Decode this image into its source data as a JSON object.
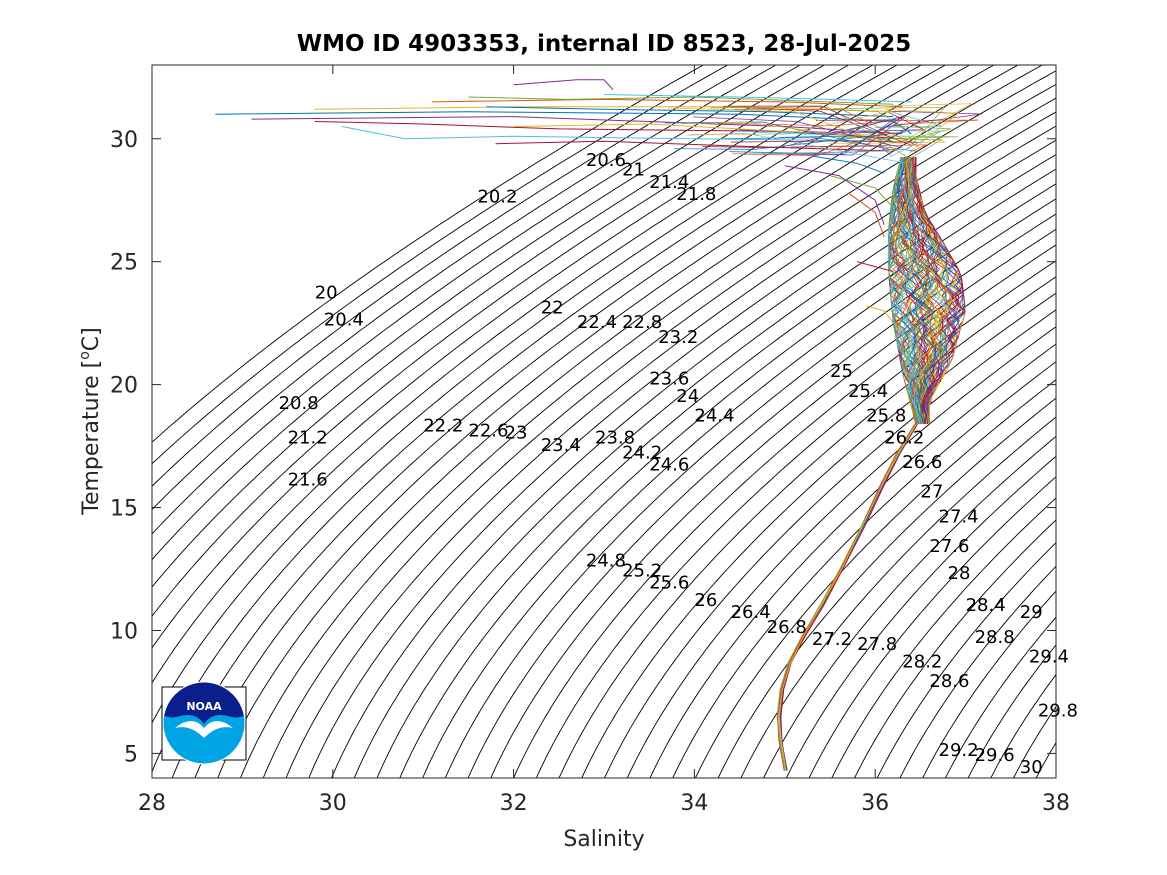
{
  "chart_data": {
    "type": "line",
    "title": "WMO ID 4903353, internal ID 8523, 28-Jul-2025",
    "xlabel": "Salinity",
    "ylabel_prefix": "Temperature [",
    "ylabel_sup": "o",
    "ylabel_suffix": "C]",
    "xlim": [
      28,
      38
    ],
    "ylim": [
      4,
      33
    ],
    "xticks": [
      28,
      30,
      32,
      34,
      36,
      38
    ],
    "yticks": [
      5,
      10,
      15,
      20,
      25,
      30
    ],
    "isopycnal_contours": {
      "levels_from": 20.0,
      "levels_to": 30.0,
      "level_step": 0.2,
      "color": "#000000"
    },
    "contour_labels": [
      {
        "text": "20",
        "s": 29.8,
        "t": 23.5
      },
      {
        "text": "20.2",
        "s": 31.6,
        "t": 27.4
      },
      {
        "text": "20.4",
        "s": 29.9,
        "t": 22.4
      },
      {
        "text": "20.6",
        "s": 32.8,
        "t": 28.9
      },
      {
        "text": "20.8",
        "s": 29.4,
        "t": 19.0
      },
      {
        "text": "21",
        "s": 33.2,
        "t": 28.5
      },
      {
        "text": "21.2",
        "s": 29.5,
        "t": 17.6
      },
      {
        "text": "21.4",
        "s": 33.5,
        "t": 28.0
      },
      {
        "text": "21.6",
        "s": 29.5,
        "t": 15.9
      },
      {
        "text": "21.8",
        "s": 33.8,
        "t": 27.5
      },
      {
        "text": "22",
        "s": 32.3,
        "t": 22.9
      },
      {
        "text": "22.2",
        "s": 31.0,
        "t": 18.1
      },
      {
        "text": "22.4",
        "s": 32.7,
        "t": 22.3
      },
      {
        "text": "22.6",
        "s": 31.5,
        "t": 17.9
      },
      {
        "text": "22.8",
        "s": 33.2,
        "t": 22.3
      },
      {
        "text": "23",
        "s": 31.9,
        "t": 17.8
      },
      {
        "text": "23.2",
        "s": 33.6,
        "t": 21.7
      },
      {
        "text": "23.4",
        "s": 32.3,
        "t": 17.3
      },
      {
        "text": "23.6",
        "s": 33.5,
        "t": 20.0
      },
      {
        "text": "23.8",
        "s": 32.9,
        "t": 17.6
      },
      {
        "text": "24",
        "s": 33.8,
        "t": 19.3
      },
      {
        "text": "24.2",
        "s": 33.2,
        "t": 17.0
      },
      {
        "text": "24.4",
        "s": 34.0,
        "t": 18.5
      },
      {
        "text": "24.6",
        "s": 33.5,
        "t": 16.5
      },
      {
        "text": "24.8",
        "s": 32.8,
        "t": 12.6
      },
      {
        "text": "25",
        "s": 35.5,
        "t": 20.3
      },
      {
        "text": "25.2",
        "s": 33.2,
        "t": 12.2
      },
      {
        "text": "25.4",
        "s": 35.7,
        "t": 19.5
      },
      {
        "text": "25.6",
        "s": 33.5,
        "t": 11.7
      },
      {
        "text": "25.8",
        "s": 35.9,
        "t": 18.5
      },
      {
        "text": "26",
        "s": 34.0,
        "t": 11.0
      },
      {
        "text": "26.2",
        "s": 36.1,
        "t": 17.6
      },
      {
        "text": "26.4",
        "s": 34.4,
        "t": 10.5
      },
      {
        "text": "26.6",
        "s": 36.3,
        "t": 16.6
      },
      {
        "text": "26.8",
        "s": 34.8,
        "t": 9.9
      },
      {
        "text": "27",
        "s": 36.5,
        "t": 15.4
      },
      {
        "text": "27.2",
        "s": 35.3,
        "t": 9.4
      },
      {
        "text": "27.4",
        "s": 36.7,
        "t": 14.4
      },
      {
        "text": "27.6",
        "s": 36.6,
        "t": 13.2
      },
      {
        "text": "27.8",
        "s": 35.8,
        "t": 9.2
      },
      {
        "text": "28",
        "s": 36.8,
        "t": 12.1
      },
      {
        "text": "28.2",
        "s": 36.3,
        "t": 8.5
      },
      {
        "text": "28.4",
        "s": 37.0,
        "t": 10.8
      },
      {
        "text": "28.6",
        "s": 36.6,
        "t": 7.7
      },
      {
        "text": "28.8",
        "s": 37.1,
        "t": 9.5
      },
      {
        "text": "29",
        "s": 37.6,
        "t": 10.5
      },
      {
        "text": "29.2",
        "s": 36.7,
        "t": 4.9
      },
      {
        "text": "29.4",
        "s": 37.7,
        "t": 8.7
      },
      {
        "text": "29.6",
        "s": 37.1,
        "t": 4.7
      },
      {
        "text": "29.8",
        "s": 37.8,
        "t": 6.5
      },
      {
        "text": "30",
        "s": 37.6,
        "t": 4.2
      }
    ],
    "profile_colors": [
      "#0072BD",
      "#D95319",
      "#EDB120",
      "#7E2F8E",
      "#77AC30",
      "#4DBEEE",
      "#A2142F"
    ],
    "deep_profile_path": [
      [
        35.0,
        4.3
      ],
      [
        34.95,
        5.5
      ],
      [
        34.93,
        6.5
      ],
      [
        34.96,
        7.6
      ],
      [
        35.05,
        8.7
      ],
      [
        35.2,
        9.8
      ],
      [
        35.4,
        11.0
      ],
      [
        35.62,
        12.5
      ],
      [
        35.85,
        14.2
      ],
      [
        36.05,
        15.8
      ],
      [
        36.25,
        17.2
      ],
      [
        36.45,
        18.4
      ],
      [
        36.6,
        19.3
      ]
    ],
    "profile_envelope": {
      "left": [
        [
          36.45,
          18.4
        ],
        [
          36.3,
          20.5
        ],
        [
          36.2,
          22.5
        ],
        [
          36.15,
          24.5
        ],
        [
          36.15,
          26.5
        ],
        [
          36.2,
          28.0
        ],
        [
          36.3,
          29.5
        ]
      ],
      "right": [
        [
          36.6,
          19.3
        ],
        [
          36.85,
          21.0
        ],
        [
          37.0,
          23.0
        ],
        [
          36.95,
          24.5
        ],
        [
          36.75,
          25.8
        ],
        [
          36.55,
          27.0
        ],
        [
          36.45,
          28.5
        ],
        [
          36.45,
          30.0
        ]
      ]
    },
    "surface_tails": [
      [
        [
          28.7,
          31.0
        ],
        [
          31.5,
          31.1
        ],
        [
          34.5,
          31.0
        ],
        [
          36.2,
          30.7
        ],
        [
          36.4,
          30.2
        ]
      ],
      [
        [
          29.1,
          30.8
        ],
        [
          32.0,
          30.9
        ],
        [
          35.0,
          30.5
        ],
        [
          36.3,
          30.2
        ]
      ],
      [
        [
          29.8,
          30.7
        ],
        [
          31.0,
          30.6
        ],
        [
          32.5,
          30.4
        ],
        [
          35.0,
          30.3
        ],
        [
          36.3,
          30.0
        ]
      ],
      [
        [
          29.8,
          31.2
        ],
        [
          32.0,
          31.3
        ],
        [
          34.5,
          31.3
        ],
        [
          36.3,
          31.1
        ]
      ],
      [
        [
          30.1,
          30.5
        ],
        [
          30.8,
          30.0
        ],
        [
          32.0,
          30.1
        ],
        [
          34.0,
          30.0
        ],
        [
          36.2,
          29.9
        ]
      ],
      [
        [
          31.1,
          31.5
        ],
        [
          33.0,
          31.6
        ],
        [
          35.0,
          31.5
        ],
        [
          36.3,
          31.3
        ]
      ],
      [
        [
          31.5,
          31.7
        ],
        [
          32.6,
          31.6
        ],
        [
          34.0,
          31.7
        ],
        [
          36.2,
          31.4
        ]
      ],
      [
        [
          31.7,
          31.3
        ],
        [
          33.0,
          31.2
        ],
        [
          34.8,
          31.1
        ],
        [
          36.2,
          30.9
        ]
      ],
      [
        [
          32.0,
          32.2
        ],
        [
          32.7,
          32.4
        ],
        [
          33.0,
          32.4
        ],
        [
          33.1,
          32.0
        ]
      ],
      [
        [
          31.8,
          29.8
        ],
        [
          33.0,
          29.9
        ],
        [
          34.5,
          29.7
        ],
        [
          36.2,
          29.5
        ]
      ],
      [
        [
          32.0,
          30.5
        ],
        [
          33.5,
          30.6
        ],
        [
          35.0,
          30.3
        ],
        [
          36.2,
          30.1
        ]
      ],
      [
        [
          33.0,
          31.8
        ],
        [
          34.5,
          31.7
        ],
        [
          35.5,
          31.6
        ],
        [
          36.4,
          31.5
        ]
      ],
      [
        [
          35.7,
          27.8
        ],
        [
          36.0,
          27.0
        ],
        [
          36.1,
          26.0
        ]
      ],
      [
        [
          35.5,
          28.5
        ],
        [
          36.0,
          28.0
        ],
        [
          36.2,
          27.2
        ]
      ],
      [
        [
          35.3,
          29.3
        ],
        [
          35.8,
          29.0
        ],
        [
          36.1,
          28.6
        ]
      ],
      [
        [
          35.0,
          28.9
        ],
        [
          35.6,
          28.5
        ],
        [
          36.0,
          27.5
        ],
        [
          36.1,
          26.5
        ]
      ],
      [
        [
          35.8,
          25.0
        ],
        [
          36.0,
          24.8
        ],
        [
          36.2,
          24.6
        ]
      ],
      [
        [
          35.9,
          23.2
        ],
        [
          36.1,
          23.0
        ],
        [
          36.2,
          22.5
        ]
      ]
    ]
  },
  "logo": {
    "text": "NOAA",
    "colors": {
      "dark": "#0A1E8C",
      "light": "#00A4E4",
      "white": "#FFFFFF"
    }
  }
}
